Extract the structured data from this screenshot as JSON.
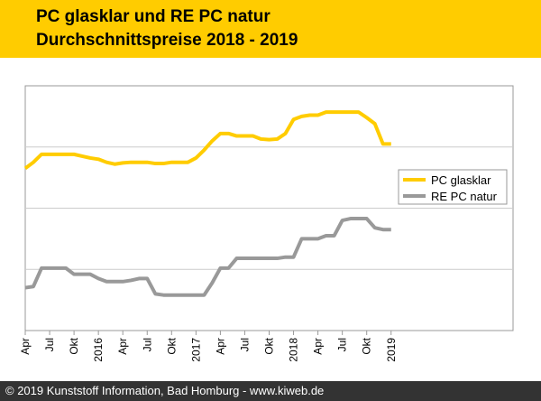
{
  "header": {
    "title_line1": "PC glasklar und RE PC natur",
    "title_line2": "Durchschnittspreise 2018 - 2019"
  },
  "footer": {
    "copyright": "© 2019 Kunststoff Information, Bad Homburg - www.kiweb.de"
  },
  "colors": {
    "header_bg": "#ffcc00",
    "footer_bg": "#333333",
    "series_pc": "#ffcc00",
    "series_re": "#999999"
  },
  "chart_data": {
    "type": "line",
    "title": "PC glasklar und RE PC natur Durchschnittspreise 2018 - 2019",
    "xlabel": "",
    "ylabel": "",
    "x_range": [
      0,
      60
    ],
    "ylim": [
      0,
      4
    ],
    "y_gridlines": [
      1,
      2,
      3
    ],
    "ytick_labels_shown": false,
    "legend_position": "right",
    "x_ticks": [
      {
        "x": 0,
        "label": "Apr"
      },
      {
        "x": 3,
        "label": "Jul"
      },
      {
        "x": 6,
        "label": "Okt"
      },
      {
        "x": 9,
        "label": "2016"
      },
      {
        "x": 12,
        "label": "Apr"
      },
      {
        "x": 15,
        "label": "Jul"
      },
      {
        "x": 18,
        "label": "Okt"
      },
      {
        "x": 21,
        "label": "2017"
      },
      {
        "x": 24,
        "label": "Apr"
      },
      {
        "x": 27,
        "label": "Jul"
      },
      {
        "x": 30,
        "label": "Okt"
      },
      {
        "x": 33,
        "label": "2018"
      },
      {
        "x": 36,
        "label": "Apr"
      },
      {
        "x": 39,
        "label": "Jul"
      },
      {
        "x": 42,
        "label": "Okt"
      },
      {
        "x": 45,
        "label": "2019"
      }
    ],
    "series": [
      {
        "name": "PC glasklar",
        "color": "#ffcc00",
        "points": [
          [
            0,
            2.65
          ],
          [
            1,
            2.75
          ],
          [
            2,
            2.88
          ],
          [
            3,
            2.88
          ],
          [
            4,
            2.88
          ],
          [
            5,
            2.88
          ],
          [
            6,
            2.88
          ],
          [
            7,
            2.85
          ],
          [
            8,
            2.82
          ],
          [
            9,
            2.8
          ],
          [
            10,
            2.75
          ],
          [
            11,
            2.72
          ],
          [
            12,
            2.74
          ],
          [
            13,
            2.75
          ],
          [
            14,
            2.75
          ],
          [
            15,
            2.75
          ],
          [
            16,
            2.73
          ],
          [
            17,
            2.73
          ],
          [
            18,
            2.75
          ],
          [
            19,
            2.75
          ],
          [
            20,
            2.75
          ],
          [
            21,
            2.82
          ],
          [
            22,
            2.95
          ],
          [
            23,
            3.1
          ],
          [
            24,
            3.22
          ],
          [
            25,
            3.22
          ],
          [
            26,
            3.18
          ],
          [
            27,
            3.18
          ],
          [
            28,
            3.18
          ],
          [
            29,
            3.13
          ],
          [
            30,
            3.12
          ],
          [
            31,
            3.13
          ],
          [
            32,
            3.22
          ],
          [
            33,
            3.45
          ],
          [
            34,
            3.5
          ],
          [
            35,
            3.52
          ],
          [
            36,
            3.52
          ],
          [
            37,
            3.57
          ],
          [
            38,
            3.57
          ],
          [
            39,
            3.57
          ],
          [
            40,
            3.57
          ],
          [
            41,
            3.57
          ],
          [
            42,
            3.48
          ],
          [
            43,
            3.38
          ],
          [
            44,
            3.05
          ],
          [
            45,
            3.05
          ]
        ]
      },
      {
        "name": "RE PC natur",
        "color": "#999999",
        "points": [
          [
            0,
            0.7
          ],
          [
            1,
            0.72
          ],
          [
            2,
            1.02
          ],
          [
            3,
            1.02
          ],
          [
            4,
            1.02
          ],
          [
            5,
            1.02
          ],
          [
            6,
            0.92
          ],
          [
            7,
            0.92
          ],
          [
            8,
            0.92
          ],
          [
            9,
            0.85
          ],
          [
            10,
            0.8
          ],
          [
            11,
            0.8
          ],
          [
            12,
            0.8
          ],
          [
            13,
            0.82
          ],
          [
            14,
            0.85
          ],
          [
            15,
            0.85
          ],
          [
            16,
            0.6
          ],
          [
            17,
            0.58
          ],
          [
            18,
            0.58
          ],
          [
            19,
            0.58
          ],
          [
            20,
            0.58
          ],
          [
            21,
            0.58
          ],
          [
            22,
            0.58
          ],
          [
            23,
            0.78
          ],
          [
            24,
            1.02
          ],
          [
            25,
            1.02
          ],
          [
            26,
            1.18
          ],
          [
            27,
            1.18
          ],
          [
            28,
            1.18
          ],
          [
            29,
            1.18
          ],
          [
            30,
            1.18
          ],
          [
            31,
            1.18
          ],
          [
            32,
            1.2
          ],
          [
            33,
            1.2
          ],
          [
            34,
            1.5
          ],
          [
            35,
            1.5
          ],
          [
            36,
            1.5
          ],
          [
            37,
            1.55
          ],
          [
            38,
            1.55
          ],
          [
            39,
            1.8
          ],
          [
            40,
            1.83
          ],
          [
            41,
            1.83
          ],
          [
            42,
            1.83
          ],
          [
            43,
            1.68
          ],
          [
            44,
            1.65
          ],
          [
            45,
            1.65
          ]
        ]
      }
    ]
  }
}
